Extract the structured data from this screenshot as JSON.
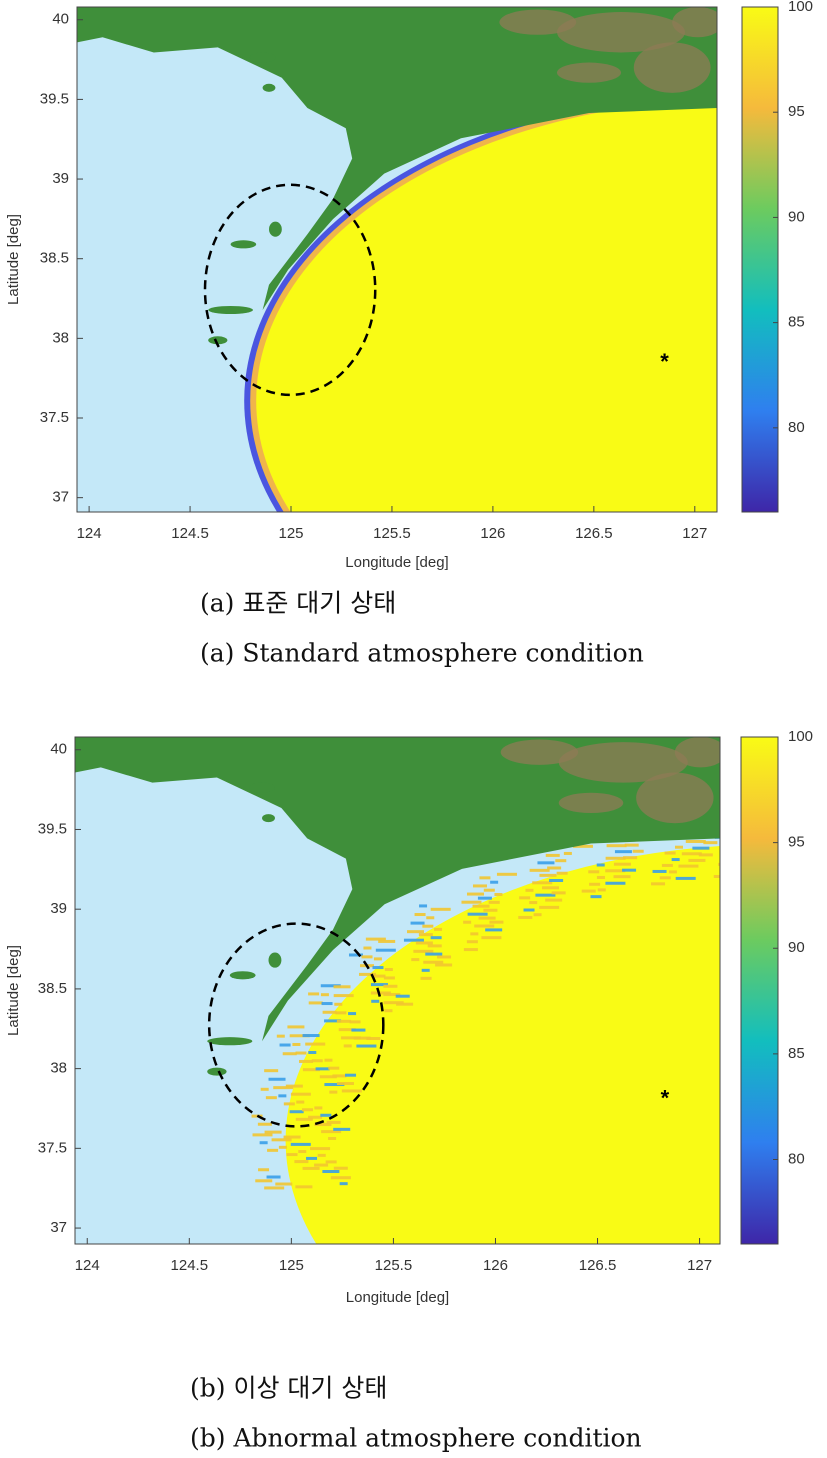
{
  "chart_data": [
    {
      "type": "heatmap",
      "xlabel": "Longitude [deg]",
      "ylabel": "Latitude [deg]",
      "xlim": [
        123.94,
        127.11
      ],
      "ylim": [
        36.91,
        40.08
      ],
      "xticks": [
        124,
        124.5,
        125,
        125.5,
        126,
        126.5,
        127
      ],
      "yticks": [
        37,
        37.5,
        38,
        38.5,
        39,
        39.5,
        40
      ],
      "clim": [
        76,
        100
      ],
      "cticks": [
        80,
        85,
        90,
        95,
        100
      ],
      "colormap": [
        "#3e26a8",
        "#2f7fef",
        "#12bebe",
        "#6ccb5f",
        "#f5ba3c",
        "#f9fb15"
      ],
      "marker": {
        "x": 126.85,
        "y": 37.87,
        "label": "*"
      },
      "caption_ko": "(a) 표준 대기 상태",
      "caption_en": "(a) Standard atmosphere condition"
    },
    {
      "type": "heatmap",
      "xlabel": "Longitude [deg]",
      "ylabel": "Latitude [deg]",
      "xlim": [
        123.94,
        127.1
      ],
      "ylim": [
        36.9,
        40.08
      ],
      "xticks": [
        124,
        124.5,
        125,
        125.5,
        126,
        126.5,
        127
      ],
      "yticks": [
        37,
        37.5,
        38,
        38.5,
        39,
        39.5,
        40
      ],
      "clim": [
        76,
        100
      ],
      "cticks": [
        80,
        85,
        90,
        95,
        100
      ],
      "colormap": [
        "#3e26a8",
        "#2f7fef",
        "#12bebe",
        "#6ccb5f",
        "#f5ba3c",
        "#f9fb15"
      ],
      "marker": {
        "x": 126.83,
        "y": 37.83,
        "label": "*"
      },
      "caption_ko": "(b) 이상 대기 상태",
      "caption_en": "(b) Abnormal atmosphere condition"
    }
  ]
}
